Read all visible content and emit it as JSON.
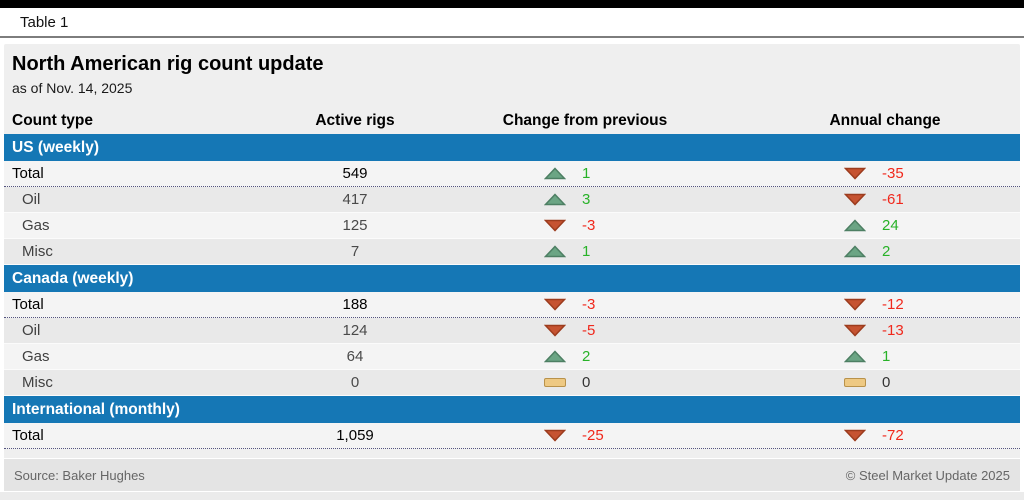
{
  "window": {
    "tag_label": "Table 1"
  },
  "chart_data": {
    "type": "table",
    "title": "North American rig count update",
    "subtitle": "as of Nov. 14, 2025",
    "columns": [
      "Count type",
      "Active rigs",
      "Change from previous",
      "Annual change"
    ],
    "sections": [
      {
        "label": "US (weekly)",
        "rows": [
          {
            "label": "Total",
            "is_total": true,
            "active_rigs": "549",
            "change": {
              "direction": "up",
              "value": "1"
            },
            "annual": {
              "direction": "down",
              "value": "-35"
            }
          },
          {
            "label": "Oil",
            "is_total": false,
            "active_rigs": "417",
            "change": {
              "direction": "up",
              "value": "3"
            },
            "annual": {
              "direction": "down",
              "value": "-61"
            }
          },
          {
            "label": "Gas",
            "is_total": false,
            "active_rigs": "125",
            "change": {
              "direction": "down",
              "value": "-3"
            },
            "annual": {
              "direction": "up",
              "value": "24"
            }
          },
          {
            "label": "Misc",
            "is_total": false,
            "active_rigs": "7",
            "change": {
              "direction": "up",
              "value": "1"
            },
            "annual": {
              "direction": "up",
              "value": "2"
            }
          }
        ]
      },
      {
        "label": "Canada (weekly)",
        "rows": [
          {
            "label": "Total",
            "is_total": true,
            "active_rigs": "188",
            "change": {
              "direction": "down",
              "value": "-3"
            },
            "annual": {
              "direction": "down",
              "value": "-12"
            }
          },
          {
            "label": "Oil",
            "is_total": false,
            "active_rigs": "124",
            "change": {
              "direction": "down",
              "value": "-5"
            },
            "annual": {
              "direction": "down",
              "value": "-13"
            }
          },
          {
            "label": "Gas",
            "is_total": false,
            "active_rigs": "64",
            "change": {
              "direction": "up",
              "value": "2"
            },
            "annual": {
              "direction": "up",
              "value": "1"
            }
          },
          {
            "label": "Misc",
            "is_total": false,
            "active_rigs": "0",
            "change": {
              "direction": "flat",
              "value": "0"
            },
            "annual": {
              "direction": "flat",
              "value": "0"
            }
          }
        ]
      },
      {
        "label": "International (monthly)",
        "rows": [
          {
            "label": "Total",
            "is_total": true,
            "active_rigs": "1,059",
            "change": {
              "direction": "down",
              "value": "-25"
            },
            "annual": {
              "direction": "down",
              "value": "-72"
            }
          }
        ]
      }
    ]
  },
  "footer": {
    "source": "Source: Baker Hughes",
    "copyright": "© Steel Market Update 2025"
  },
  "colors": {
    "band_blue": "#1577b5",
    "up_fill": "#6ba584",
    "up_stroke": "#4d7f63",
    "down_fill": "#c65331",
    "down_stroke": "#9c3c1e",
    "flat_fill": "#eec983",
    "flat_stroke": "#b9924a"
  }
}
